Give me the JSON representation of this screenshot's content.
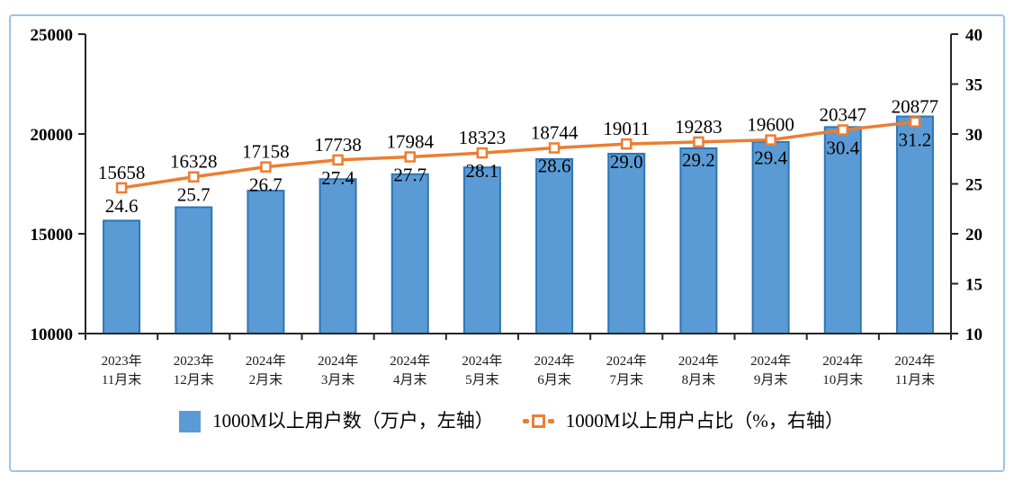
{
  "chart_data": {
    "type": "bar",
    "subtype": "bar+line combo, dual axis",
    "categories": [
      [
        "2023年",
        "11月末"
      ],
      [
        "2023年",
        "12月末"
      ],
      [
        "2024年",
        "2月末"
      ],
      [
        "2024年",
        "3月末"
      ],
      [
        "2024年",
        "4月末"
      ],
      [
        "2024年",
        "5月末"
      ],
      [
        "2024年",
        "6月末"
      ],
      [
        "2024年",
        "7月末"
      ],
      [
        "2024年",
        "8月末"
      ],
      [
        "2024年",
        "9月末"
      ],
      [
        "2024年",
        "10月末"
      ],
      [
        "2024年",
        "11月末"
      ]
    ],
    "series": [
      {
        "name": "1000M以上用户数（万户，左轴）",
        "type": "bar",
        "axis": "left",
        "values": [
          15658,
          16328,
          17158,
          17738,
          17984,
          18323,
          18744,
          19011,
          19283,
          19600,
          20347,
          20877
        ],
        "labels": [
          "15658",
          "16328",
          "17158",
          "17738",
          "17984",
          "18323",
          "18744",
          "19011",
          "19283",
          "19600",
          "20347",
          "20877"
        ]
      },
      {
        "name": "1000M以上用户占比（%，右轴）",
        "type": "line",
        "axis": "right",
        "values": [
          24.6,
          25.7,
          26.7,
          27.4,
          27.7,
          28.1,
          28.6,
          29.0,
          29.2,
          29.4,
          30.4,
          31.2
        ],
        "labels": [
          "24.6",
          "25.7",
          "26.7",
          "27.4",
          "27.7",
          "28.1",
          "28.6",
          "29.0",
          "29.2",
          "29.4",
          "30.4",
          "31.2"
        ]
      }
    ],
    "left_axis": {
      "min": 10000,
      "max": 25000,
      "ticks": [
        10000,
        15000,
        20000,
        25000
      ]
    },
    "right_axis": {
      "min": 10,
      "max": 40,
      "ticks": [
        10,
        15,
        20,
        25,
        30,
        35,
        40
      ]
    },
    "grid": false,
    "legend_position": "bottom",
    "colors": {
      "bar_fill": "#5B9BD5",
      "bar_border": "#2E75B6",
      "line": "#ED7D31",
      "marker_fill": "#FFFFFF",
      "axis": "#262626",
      "frame": "#9DC3E6",
      "text": "#000000"
    }
  }
}
